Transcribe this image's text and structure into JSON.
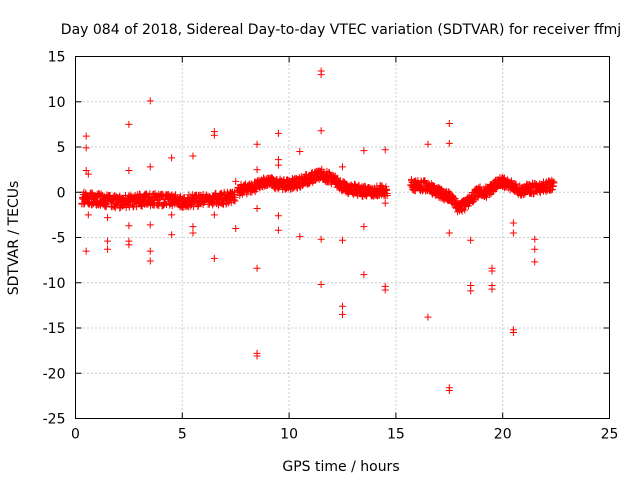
{
  "chart_data": {
    "type": "scatter",
    "title": "Day 084 of 2018, Sidereal Day-to-day VTEC variation (SDTVAR) for receiver ffmj",
    "xlabel": "GPS time / hours",
    "ylabel": "SDTVAR / TECUs",
    "xlim": [
      0,
      25
    ],
    "ylim": [
      -25,
      15
    ],
    "xticks": [
      0,
      5,
      10,
      15,
      20,
      25
    ],
    "yticks": [
      -25,
      -20,
      -15,
      -10,
      -5,
      0,
      5,
      10,
      15
    ],
    "grid": true,
    "marker": "+",
    "color": "#ff0000",
    "series": [
      {
        "name": "SDTVAR",
        "outliers": [
          [
            0.5,
            6.2
          ],
          [
            0.5,
            4.9
          ],
          [
            0.5,
            2.4
          ],
          [
            0.5,
            -6.5
          ],
          [
            0.6,
            2.0
          ],
          [
            0.6,
            -2.5
          ],
          [
            1.5,
            -2.8
          ],
          [
            1.5,
            -5.4
          ],
          [
            1.5,
            -6.3
          ],
          [
            2.5,
            7.5
          ],
          [
            2.5,
            2.4
          ],
          [
            2.5,
            -3.7
          ],
          [
            2.5,
            -5.4
          ],
          [
            2.5,
            -5.8
          ],
          [
            3.5,
            10.1
          ],
          [
            3.5,
            2.8
          ],
          [
            3.5,
            -3.6
          ],
          [
            3.5,
            -6.5
          ],
          [
            3.5,
            -7.6
          ],
          [
            4.5,
            3.8
          ],
          [
            4.5,
            -2.5
          ],
          [
            4.5,
            -4.7
          ],
          [
            5.5,
            4.0
          ],
          [
            5.5,
            -3.8
          ],
          [
            5.5,
            -4.5
          ],
          [
            6.5,
            6.7
          ],
          [
            6.5,
            6.3
          ],
          [
            6.5,
            -2.5
          ],
          [
            6.5,
            -7.3
          ],
          [
            7.5,
            1.2
          ],
          [
            7.5,
            -4.0
          ],
          [
            8.5,
            5.3
          ],
          [
            8.5,
            2.5
          ],
          [
            8.5,
            -1.8
          ],
          [
            8.5,
            -8.4
          ],
          [
            8.5,
            -17.8
          ],
          [
            8.5,
            -18.1
          ],
          [
            9.5,
            6.5
          ],
          [
            9.5,
            3.6
          ],
          [
            9.5,
            3.0
          ],
          [
            9.5,
            -2.6
          ],
          [
            9.5,
            -4.2
          ],
          [
            10.5,
            4.5
          ],
          [
            10.5,
            -4.9
          ],
          [
            11.5,
            13.4
          ],
          [
            11.5,
            13.0
          ],
          [
            11.5,
            6.8
          ],
          [
            11.5,
            -5.2
          ],
          [
            11.5,
            -10.2
          ],
          [
            12.5,
            2.8
          ],
          [
            12.5,
            -5.3
          ],
          [
            12.5,
            -12.6
          ],
          [
            12.5,
            -13.5
          ],
          [
            13.5,
            4.6
          ],
          [
            13.5,
            -3.8
          ],
          [
            13.5,
            -9.1
          ],
          [
            14.5,
            4.7
          ],
          [
            14.5,
            -1.2
          ],
          [
            14.5,
            -10.4
          ],
          [
            14.5,
            -10.8
          ],
          [
            16.5,
            5.3
          ],
          [
            16.5,
            -13.8
          ],
          [
            17.5,
            7.6
          ],
          [
            17.5,
            5.4
          ],
          [
            17.5,
            -4.5
          ],
          [
            17.5,
            -21.6
          ],
          [
            17.5,
            -21.9
          ],
          [
            18.5,
            -5.3
          ],
          [
            18.5,
            -10.3
          ],
          [
            18.5,
            -10.9
          ],
          [
            19.5,
            -8.4
          ],
          [
            19.5,
            -8.7
          ],
          [
            19.5,
            -10.3
          ],
          [
            19.5,
            -10.7
          ],
          [
            20.5,
            -3.4
          ],
          [
            20.5,
            -4.5
          ],
          [
            20.5,
            -15.2
          ],
          [
            20.5,
            -15.5
          ],
          [
            21.5,
            -5.2
          ],
          [
            21.5,
            -6.3
          ],
          [
            21.5,
            -7.7
          ]
        ],
        "trend_segments": [
          {
            "x": [
              0.3,
              2.0,
              3.5,
              5.0,
              7.5
            ],
            "y": [
              -0.6,
              -1.1,
              -0.8,
              -1.0,
              -0.6
            ],
            "spread": 0.7,
            "step": 0.03
          },
          {
            "x": [
              7.6,
              8.4,
              9.0,
              9.7,
              10.4,
              11.0,
              11.5,
              12.0,
              12.6,
              13.5,
              14.6
            ],
            "y": [
              0.2,
              0.6,
              1.2,
              0.8,
              1.0,
              1.6,
              2.0,
              1.5,
              0.5,
              0.1,
              0.2
            ],
            "spread": 0.6,
            "step": 0.03
          },
          {
            "x": [
              15.7,
              16.5,
              17.0,
              17.5,
              17.9,
              18.3,
              18.8,
              19.3,
              19.8,
              20.3,
              20.8,
              21.4,
              22.0,
              22.4
            ],
            "y": [
              0.8,
              0.7,
              0.0,
              -0.5,
              -1.6,
              -1.4,
              0.0,
              0.0,
              1.2,
              0.9,
              0.2,
              0.4,
              0.6,
              0.8
            ],
            "spread": 0.6,
            "step": 0.03
          }
        ]
      }
    ]
  }
}
